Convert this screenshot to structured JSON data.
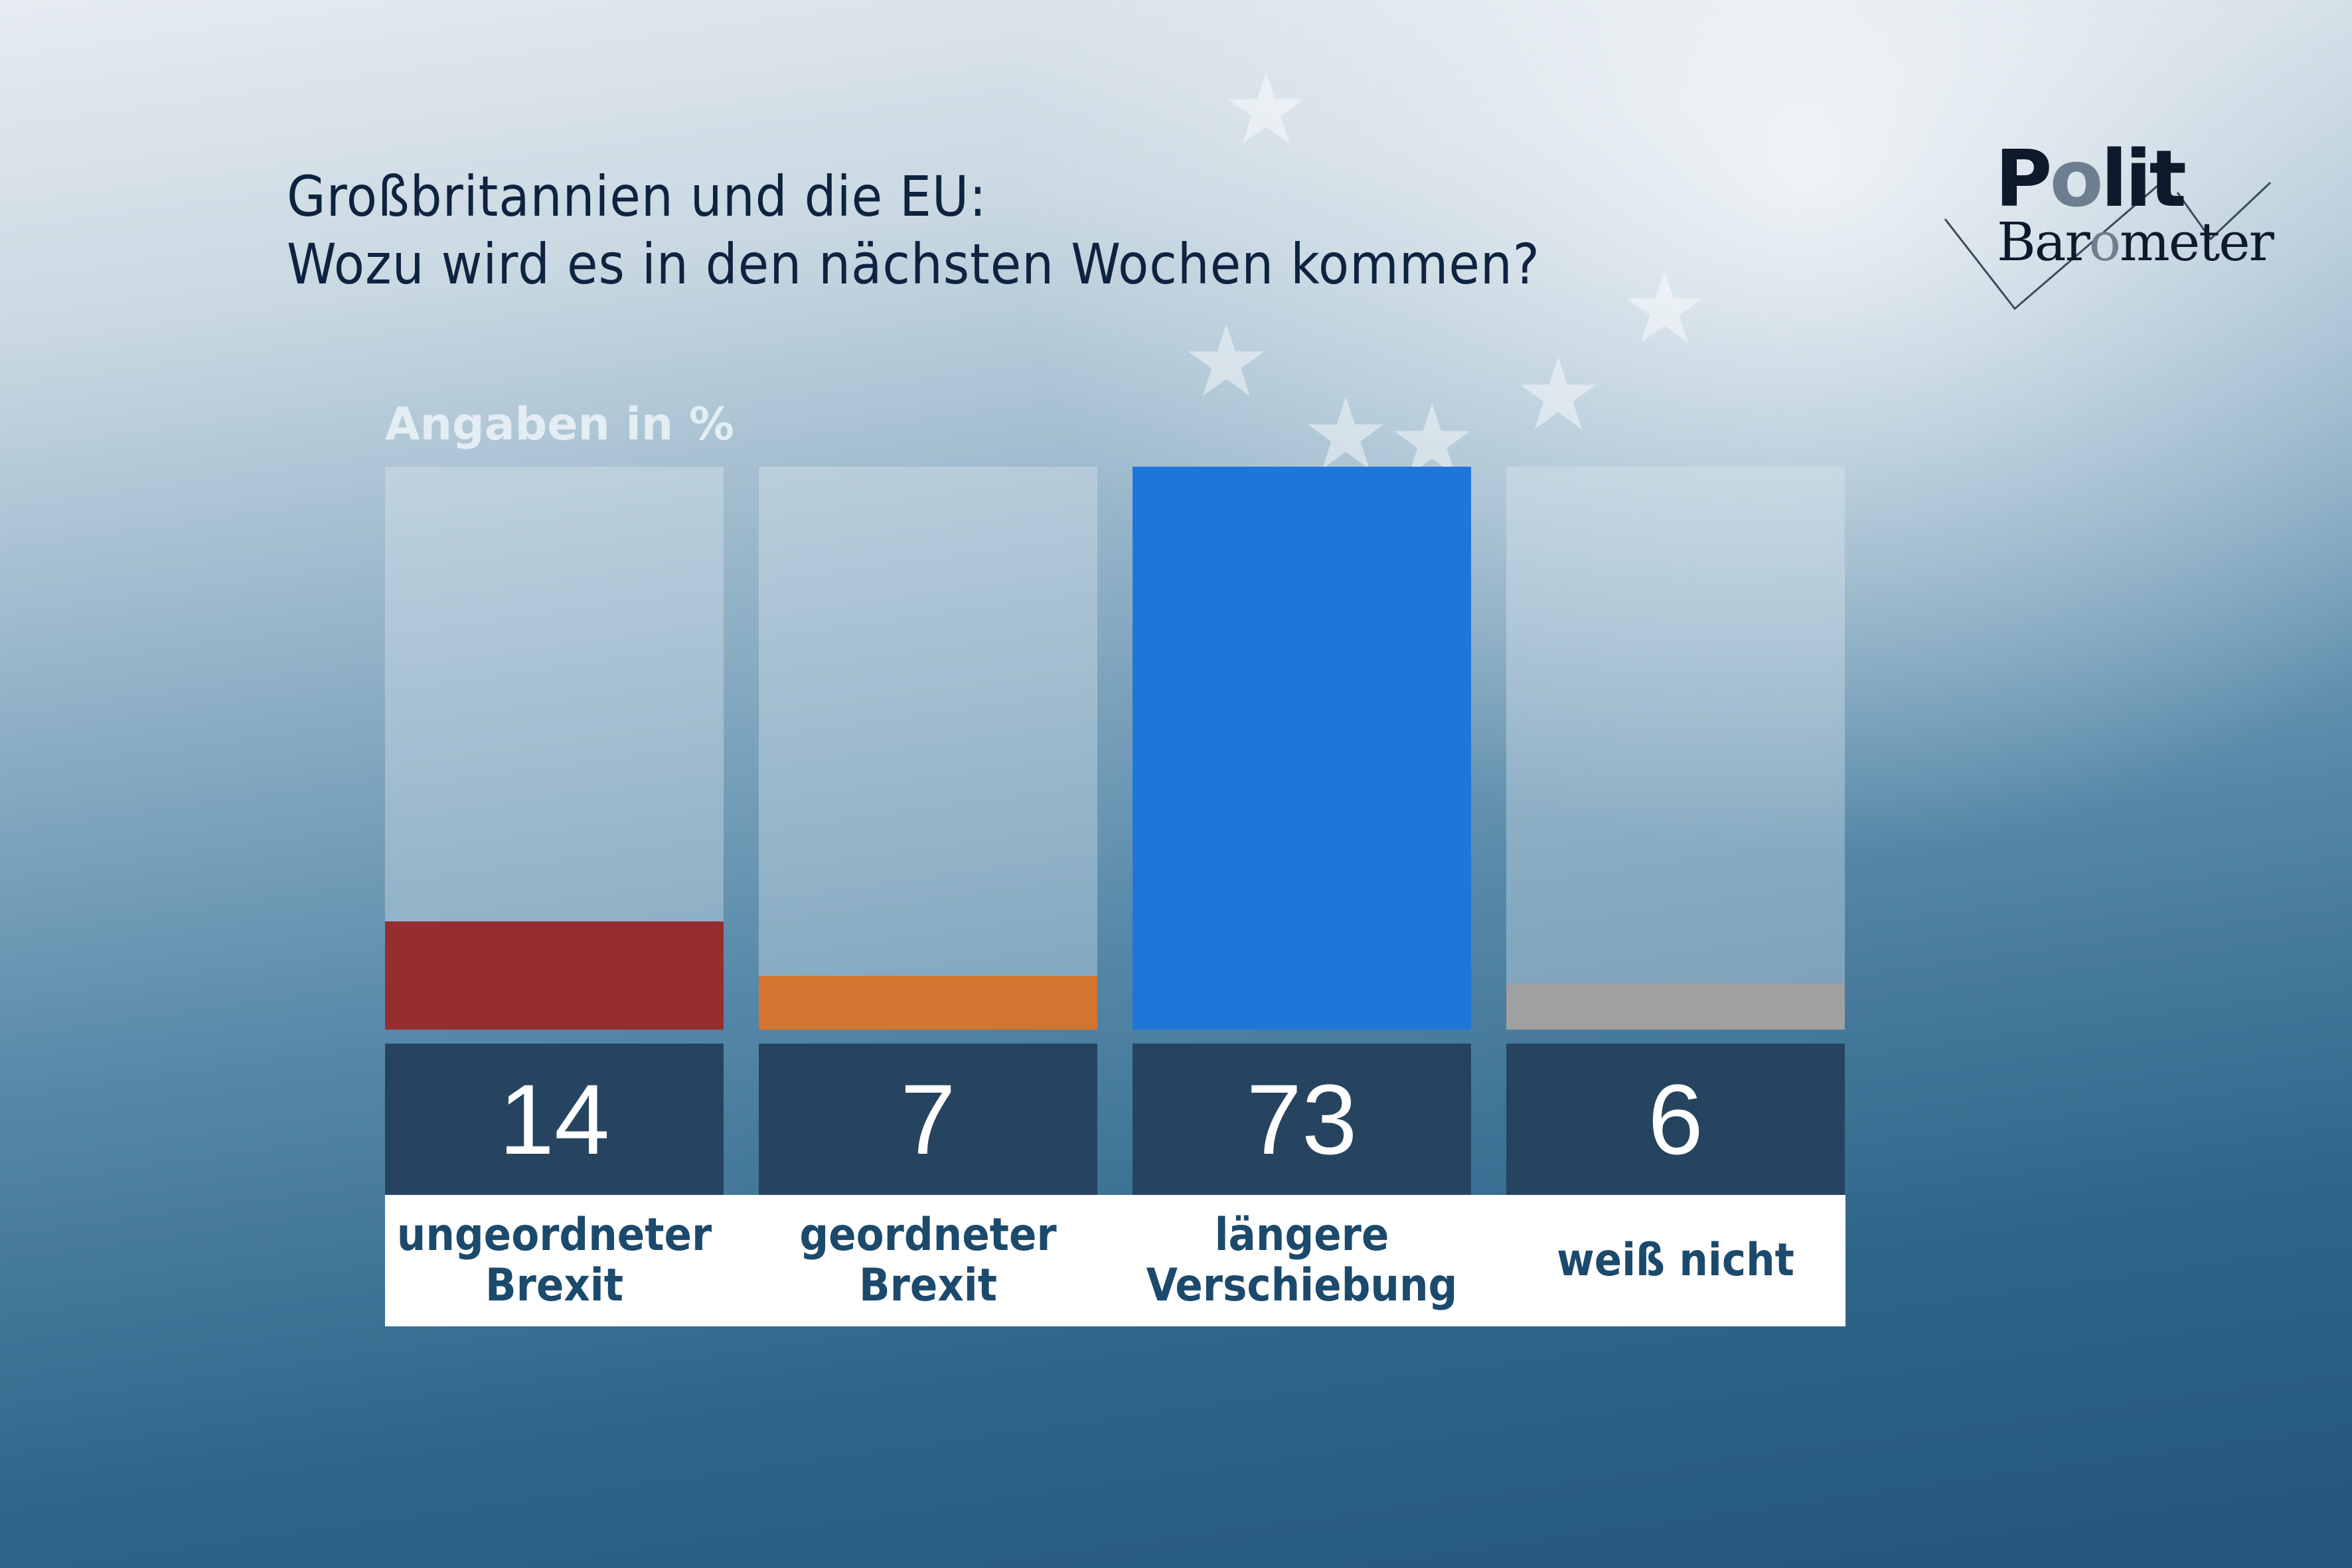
{
  "header": {
    "title_line1": "Großbritannien und die EU:",
    "title_line2": "Wozu wird es in den nächsten Wochen kommen?"
  },
  "logo": {
    "polit_p": "P",
    "polit_o": "o",
    "polit_rest": "lit",
    "baro_start": "Bar",
    "baro_o": "o",
    "baro_rest": "meter"
  },
  "colors": {
    "ungeordneter": "#962e30",
    "geordneter": "#d2762f",
    "verschiebung": "#1f76d9",
    "weiss_nicht": "#a0a0a0",
    "value_box": "#26445f",
    "label_text": "#1c4a6c"
  },
  "chart_data": {
    "type": "bar",
    "title": "Großbritannien und die EU: Wozu wird es in den nächsten Wochen kommen?",
    "unit_label": "Angaben in %",
    "categories": [
      "ungeordneter Brexit",
      "geordneter Brexit",
      "längere Verschiebung",
      "weiß nicht"
    ],
    "category_lines": [
      "ungeordneter\nBrexit",
      "geordneter\nBrexit",
      "längere\nVerschiebung",
      "weiß nicht"
    ],
    "values": [
      14,
      7,
      73,
      6
    ],
    "value_labels": [
      "14",
      "7",
      "73",
      "6"
    ],
    "ylim": [
      0,
      73
    ],
    "xlabel": "",
    "ylabel": "",
    "grid": false,
    "legend": "none"
  }
}
